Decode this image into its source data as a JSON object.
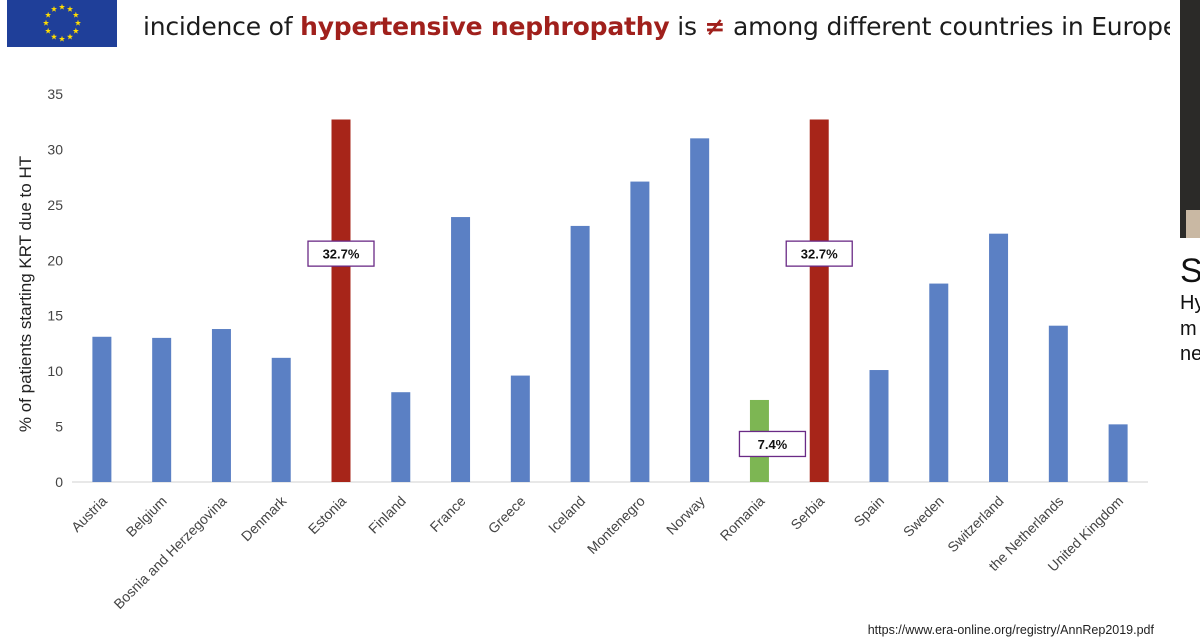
{
  "header": {
    "title_pre": "incidence of ",
    "title_highlight": "hypertensive nephropathy",
    "title_mid": " is ",
    "title_symbol": "≠",
    "title_post": " among different countries in Europe"
  },
  "colors": {
    "default_bar": "#5b80c4",
    "highlight_bar": "#a72519",
    "romania_bar": "#7db653",
    "title_accent": "#a0201c",
    "label_border": "#6a2a86"
  },
  "chart_data": {
    "type": "bar",
    "categories": [
      "Austria",
      "Belgium",
      "Bosnia and Herzegovina",
      "Denmark",
      "Estonia",
      "Finland",
      "France",
      "Greece",
      "Iceland",
      "Montenegro",
      "Norway",
      "Romania",
      "Serbia",
      "Spain",
      "Sweden",
      "Switzerland",
      "the Netherlands",
      "United Kingdom"
    ],
    "values": [
      13.1,
      13.0,
      13.8,
      11.2,
      32.7,
      8.1,
      23.9,
      9.6,
      23.1,
      27.1,
      31.0,
      7.4,
      32.7,
      10.1,
      17.9,
      22.4,
      14.1,
      5.2
    ],
    "bar_colors": [
      "default",
      "default",
      "default",
      "default",
      "highlight",
      "default",
      "default",
      "default",
      "default",
      "default",
      "default",
      "romania",
      "highlight",
      "default",
      "default",
      "default",
      "default",
      "default"
    ],
    "data_labels": [
      {
        "index": 4,
        "text": "32.7%"
      },
      {
        "index": 11,
        "text": "7.4%"
      },
      {
        "index": 12,
        "text": "32.7%"
      }
    ],
    "ylabel": "% of patients starting KRT due to HT",
    "xlabel": "",
    "ylim": [
      0,
      35
    ],
    "yticks": [
      0,
      5,
      10,
      15,
      20,
      25,
      30,
      35
    ],
    "grid": false,
    "legend": "none"
  },
  "source": "https://www.era-online.org/registry/AnnRep2019.pdf",
  "side": {
    "big_letter": "S",
    "lines": [
      "Hy",
      "m",
      "ne"
    ]
  }
}
